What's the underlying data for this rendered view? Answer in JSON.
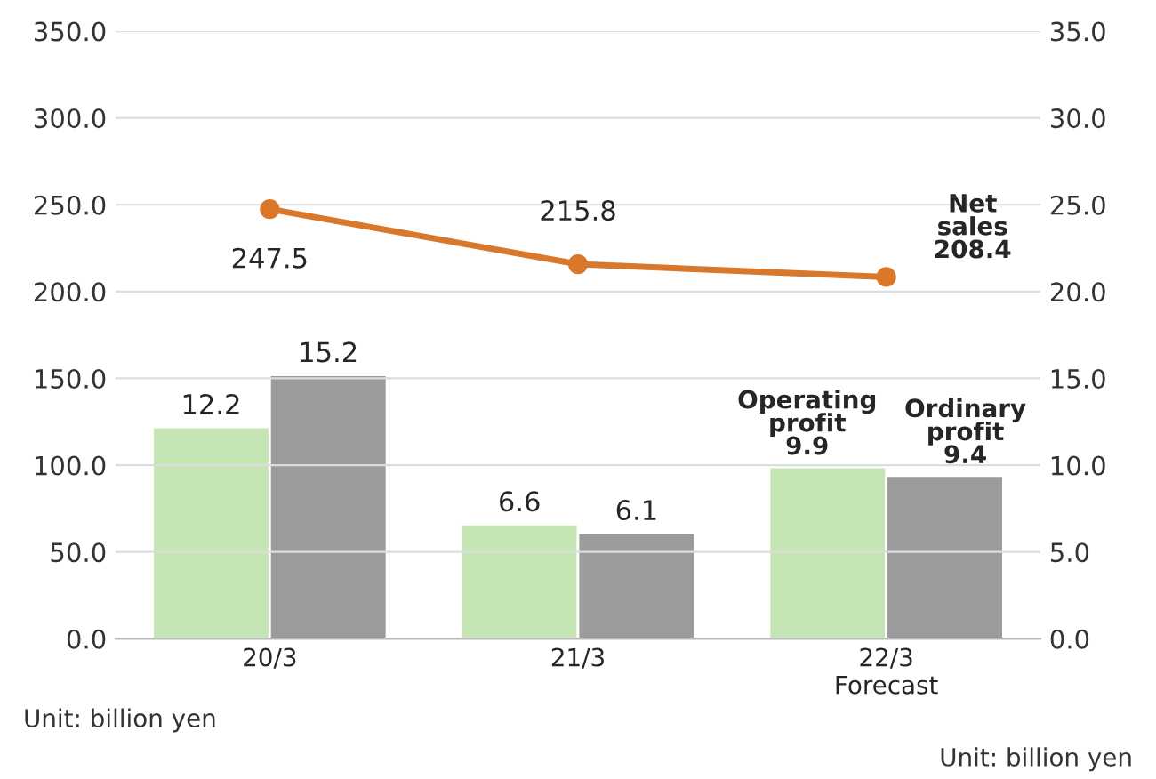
{
  "chart_data": {
    "type": "bar",
    "categories": [
      "20/3",
      "21/3",
      "22/3\nForecast"
    ],
    "series": [
      {
        "name": "Operating profit",
        "axis": "y2",
        "color": "#c6e5b5",
        "values": [
          12.2,
          6.6,
          9.9
        ]
      },
      {
        "name": "Ordinary profit",
        "axis": "y2",
        "color": "#9b9b9b",
        "values": [
          15.2,
          6.1,
          9.4
        ]
      },
      {
        "name": "Net sales",
        "type": "line",
        "axis": "y",
        "color": "#d9772b",
        "marker": "circle",
        "values": [
          247.5,
          215.8,
          208.4
        ]
      }
    ],
    "ylim": [
      0,
      350
    ],
    "yticks": [
      {
        "value": 0,
        "label": "0.0"
      },
      {
        "value": 50,
        "label": "50.0"
      },
      {
        "value": 100,
        "label": "100.0"
      },
      {
        "value": 150,
        "label": "150.0"
      },
      {
        "value": 200,
        "label": "200.0"
      },
      {
        "value": 250,
        "label": "250.0"
      },
      {
        "value": 300,
        "label": "300.0"
      },
      {
        "value": 350,
        "label": "350.0"
      }
    ],
    "y2lim": [
      0,
      35
    ],
    "y2ticks": [
      {
        "value": 0,
        "label": "0.0"
      },
      {
        "value": 5,
        "label": "5.0"
      },
      {
        "value": 10,
        "label": "10.0"
      },
      {
        "value": 15,
        "label": "15.0"
      },
      {
        "value": 20,
        "label": "20.0"
      },
      {
        "value": 25,
        "label": "25.0"
      },
      {
        "value": 30,
        "label": "30.0"
      },
      {
        "value": 35,
        "label": "35.0"
      }
    ],
    "grid": "y",
    "legend": false,
    "data_labels": true,
    "annotations": [
      "Unit: billion yen",
      "Unit: billion yen"
    ]
  }
}
